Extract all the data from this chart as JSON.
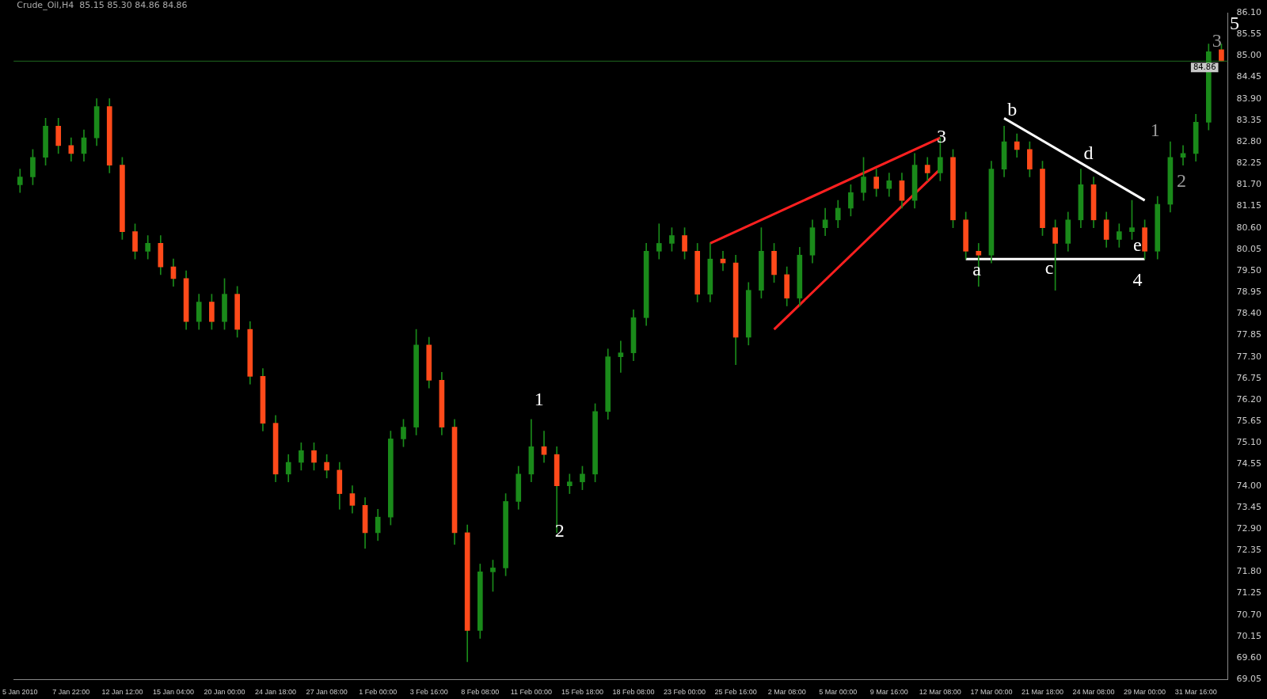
{
  "chart_data": {
    "type": "candlestick",
    "title": "Crude_Oil,H4  85.15 85.30 84.86 84.86",
    "categories": [
      "5 Jan 2010",
      null,
      null,
      null,
      "7 Jan 22:00",
      null,
      null,
      null,
      "12 Jan 12:00",
      null,
      null,
      null,
      "15 Jan 04:00",
      null,
      null,
      null,
      "20 Jan 00:00",
      null,
      null,
      null,
      "24 Jan 18:00",
      null,
      null,
      null,
      "27 Jan 08:00",
      null,
      null,
      null,
      "1 Feb 00:00",
      null,
      null,
      null,
      "3 Feb 16:00",
      null,
      null,
      null,
      "8 Feb 08:00",
      null,
      null,
      null,
      "11 Feb 00:00",
      null,
      null,
      null,
      "15 Feb 18:00",
      null,
      null,
      null,
      "18 Feb 08:00",
      null,
      null,
      null,
      "23 Feb 00:00",
      null,
      null,
      null,
      "25 Feb 16:00",
      null,
      null,
      null,
      "2 Mar 08:00",
      null,
      null,
      null,
      "5 Mar 00:00",
      null,
      null,
      null,
      "9 Mar 16:00",
      null,
      null,
      null,
      "12 Mar 08:00",
      null,
      null,
      null,
      "17 Mar 00:00",
      null,
      null,
      null,
      "21 Mar 18:00",
      null,
      null,
      null,
      "24 Mar 08:00",
      null,
      null,
      null,
      "29 Mar 00:00",
      null,
      null,
      null,
      "31 Mar 16:00",
      null,
      null
    ],
    "ohlc": [
      [
        81.7,
        82.1,
        81.5,
        81.9
      ],
      [
        81.9,
        82.6,
        81.7,
        82.4
      ],
      [
        82.4,
        83.4,
        82.2,
        83.2
      ],
      [
        83.2,
        83.4,
        82.5,
        82.7
      ],
      [
        82.7,
        82.9,
        82.3,
        82.5
      ],
      [
        82.5,
        83.1,
        82.3,
        82.9
      ],
      [
        82.9,
        83.9,
        82.7,
        83.7
      ],
      [
        83.7,
        83.9,
        82.0,
        82.2
      ],
      [
        82.2,
        82.4,
        80.3,
        80.5
      ],
      [
        80.5,
        80.7,
        79.8,
        80.0
      ],
      [
        80.0,
        80.4,
        79.8,
        80.2
      ],
      [
        80.2,
        80.4,
        79.4,
        79.6
      ],
      [
        79.6,
        79.8,
        79.1,
        79.3
      ],
      [
        79.3,
        79.5,
        78.0,
        78.2
      ],
      [
        78.2,
        78.9,
        78.0,
        78.7
      ],
      [
        78.7,
        78.9,
        78.0,
        78.2
      ],
      [
        78.2,
        79.3,
        78.0,
        78.9
      ],
      [
        78.9,
        79.1,
        77.8,
        78.0
      ],
      [
        78.0,
        78.2,
        76.6,
        76.8
      ],
      [
        76.8,
        77.0,
        75.4,
        75.6
      ],
      [
        75.6,
        75.8,
        74.1,
        74.3
      ],
      [
        74.3,
        74.8,
        74.1,
        74.6
      ],
      [
        74.6,
        75.1,
        74.4,
        74.9
      ],
      [
        74.9,
        75.1,
        74.4,
        74.6
      ],
      [
        74.6,
        74.8,
        74.2,
        74.4
      ],
      [
        74.4,
        74.6,
        73.4,
        73.8
      ],
      [
        73.8,
        74.0,
        73.3,
        73.5
      ],
      [
        73.5,
        73.7,
        72.4,
        72.8
      ],
      [
        72.8,
        73.4,
        72.6,
        73.2
      ],
      [
        73.2,
        75.4,
        73.0,
        75.2
      ],
      [
        75.2,
        75.7,
        75.0,
        75.5
      ],
      [
        75.5,
        78.0,
        75.3,
        77.6
      ],
      [
        77.6,
        77.8,
        76.5,
        76.7
      ],
      [
        76.7,
        76.9,
        75.3,
        75.5
      ],
      [
        75.5,
        75.7,
        72.5,
        72.8
      ],
      [
        72.8,
        73.0,
        69.5,
        70.3
      ],
      [
        70.3,
        72.0,
        70.1,
        71.8
      ],
      [
        71.8,
        72.1,
        71.3,
        71.9
      ],
      [
        71.9,
        73.8,
        71.7,
        73.6
      ],
      [
        73.6,
        74.5,
        73.4,
        74.3
      ],
      [
        74.3,
        75.7,
        74.1,
        75.0
      ],
      [
        75.0,
        75.4,
        74.6,
        74.8
      ],
      [
        74.8,
        75.0,
        72.8,
        74.0
      ],
      [
        74.0,
        74.3,
        73.8,
        74.1
      ],
      [
        74.1,
        74.5,
        73.9,
        74.3
      ],
      [
        74.3,
        76.1,
        74.1,
        75.9
      ],
      [
        75.9,
        77.5,
        75.7,
        77.3
      ],
      [
        77.3,
        77.7,
        76.9,
        77.4
      ],
      [
        77.4,
        78.5,
        77.2,
        78.3
      ],
      [
        78.3,
        80.2,
        78.1,
        80.0
      ],
      [
        80.0,
        80.7,
        79.8,
        80.2
      ],
      [
        80.2,
        80.6,
        80.0,
        80.4
      ],
      [
        80.4,
        80.6,
        79.8,
        80.0
      ],
      [
        80.0,
        80.2,
        78.7,
        78.9
      ],
      [
        78.9,
        80.2,
        78.7,
        79.8
      ],
      [
        79.8,
        80.0,
        79.5,
        79.7
      ],
      [
        79.7,
        79.9,
        77.1,
        77.8
      ],
      [
        77.8,
        79.2,
        77.6,
        79.0
      ],
      [
        79.0,
        80.6,
        78.8,
        80.0
      ],
      [
        80.0,
        80.2,
        79.2,
        79.4
      ],
      [
        79.4,
        79.6,
        78.6,
        78.8
      ],
      [
        78.8,
        80.1,
        78.6,
        79.9
      ],
      [
        79.9,
        80.8,
        79.7,
        80.6
      ],
      [
        80.6,
        81.1,
        80.4,
        80.8
      ],
      [
        80.8,
        81.3,
        80.6,
        81.1
      ],
      [
        81.1,
        81.7,
        80.9,
        81.5
      ],
      [
        81.5,
        82.4,
        81.3,
        81.9
      ],
      [
        81.9,
        82.1,
        81.4,
        81.6
      ],
      [
        81.6,
        82.0,
        81.4,
        81.8
      ],
      [
        81.8,
        82.0,
        81.1,
        81.3
      ],
      [
        81.3,
        82.5,
        81.1,
        82.2
      ],
      [
        82.2,
        82.4,
        81.8,
        82.0
      ],
      [
        82.0,
        82.9,
        81.8,
        82.4
      ],
      [
        82.4,
        82.6,
        80.6,
        80.8
      ],
      [
        80.8,
        81.0,
        79.8,
        80.0
      ],
      [
        80.0,
        80.2,
        79.1,
        79.9
      ],
      [
        79.9,
        82.3,
        79.7,
        82.1
      ],
      [
        82.1,
        83.2,
        81.9,
        82.8
      ],
      [
        82.8,
        83.0,
        82.4,
        82.6
      ],
      [
        82.6,
        82.8,
        81.9,
        82.1
      ],
      [
        82.1,
        82.3,
        80.4,
        80.6
      ],
      [
        80.6,
        80.8,
        79.0,
        80.2
      ],
      [
        80.2,
        81.0,
        80.0,
        80.8
      ],
      [
        80.8,
        82.1,
        80.6,
        81.7
      ],
      [
        81.7,
        81.9,
        80.6,
        80.8
      ],
      [
        80.8,
        81.0,
        80.1,
        80.3
      ],
      [
        80.3,
        80.7,
        80.1,
        80.5
      ],
      [
        80.5,
        81.3,
        80.3,
        80.6
      ],
      [
        80.6,
        80.8,
        79.8,
        80.0
      ],
      [
        80.0,
        81.4,
        79.8,
        81.2
      ],
      [
        81.2,
        82.8,
        81.0,
        82.4
      ],
      [
        82.4,
        82.7,
        82.2,
        82.5
      ],
      [
        82.5,
        83.5,
        82.3,
        83.3
      ],
      [
        83.3,
        85.3,
        83.1,
        85.1
      ],
      [
        85.15,
        85.3,
        84.86,
        84.86
      ]
    ],
    "series": [
      {
        "type": "line",
        "color": "#ff2020",
        "values": [
          null,
          null,
          null,
          null,
          null,
          null,
          null,
          null,
          null,
          null,
          null,
          null,
          null,
          null,
          null,
          null,
          null,
          null,
          null,
          null,
          null,
          null,
          null,
          null,
          null,
          null,
          null,
          null,
          null,
          null,
          null,
          null,
          null,
          null,
          null,
          null,
          null,
          null,
          null,
          null,
          null,
          null,
          null,
          null,
          null,
          null,
          null,
          null,
          null,
          null,
          null,
          null,
          null,
          null,
          80.2,
          null,
          null,
          null,
          null,
          null,
          null,
          null,
          null,
          null,
          null,
          null,
          null,
          null,
          null,
          null,
          null,
          null,
          82.9,
          null,
          null,
          null,
          null,
          null,
          null,
          null,
          null,
          null,
          null,
          null,
          null,
          null,
          null,
          null,
          null,
          null,
          null,
          null,
          null,
          null,
          null
        ]
      },
      {
        "type": "line",
        "color": "#ff2020",
        "values": [
          null,
          null,
          null,
          null,
          null,
          null,
          null,
          null,
          null,
          null,
          null,
          null,
          null,
          null,
          null,
          null,
          null,
          null,
          null,
          null,
          null,
          null,
          null,
          null,
          null,
          null,
          null,
          null,
          null,
          null,
          null,
          null,
          null,
          null,
          null,
          null,
          null,
          null,
          null,
          null,
          null,
          null,
          null,
          null,
          null,
          null,
          null,
          null,
          null,
          null,
          null,
          null,
          null,
          null,
          null,
          null,
          null,
          null,
          null,
          78.0,
          null,
          null,
          null,
          null,
          null,
          null,
          null,
          null,
          null,
          null,
          null,
          null,
          82.1,
          null,
          null,
          null,
          null,
          null,
          null,
          null,
          null,
          null,
          null,
          null,
          null,
          null,
          null,
          null,
          null,
          null,
          null,
          null,
          null,
          null,
          null
        ]
      },
      {
        "type": "line",
        "color": "#ffffff",
        "values": [
          null,
          null,
          null,
          null,
          null,
          null,
          null,
          null,
          null,
          null,
          null,
          null,
          null,
          null,
          null,
          null,
          null,
          null,
          null,
          null,
          null,
          null,
          null,
          null,
          null,
          null,
          null,
          null,
          null,
          null,
          null,
          null,
          null,
          null,
          null,
          null,
          null,
          null,
          null,
          null,
          null,
          null,
          null,
          null,
          null,
          null,
          null,
          null,
          null,
          null,
          null,
          null,
          null,
          null,
          null,
          null,
          null,
          null,
          null,
          null,
          null,
          null,
          null,
          null,
          null,
          null,
          null,
          null,
          null,
          null,
          null,
          null,
          null,
          null,
          null,
          null,
          null,
          83.4,
          null,
          null,
          null,
          null,
          null,
          null,
          null,
          null,
          null,
          null,
          81.3,
          null,
          null,
          null,
          null,
          null,
          null
        ]
      },
      {
        "type": "line",
        "color": "#ffffff",
        "values": [
          null,
          null,
          null,
          null,
          null,
          null,
          null,
          null,
          null,
          null,
          null,
          null,
          null,
          null,
          null,
          null,
          null,
          null,
          null,
          null,
          null,
          null,
          null,
          null,
          null,
          null,
          null,
          null,
          null,
          null,
          null,
          null,
          null,
          null,
          null,
          null,
          null,
          null,
          null,
          null,
          null,
          null,
          null,
          null,
          null,
          null,
          null,
          null,
          null,
          null,
          null,
          null,
          null,
          null,
          null,
          null,
          null,
          null,
          null,
          null,
          null,
          null,
          null,
          null,
          null,
          null,
          null,
          null,
          null,
          null,
          null,
          null,
          null,
          null,
          79.8,
          null,
          null,
          null,
          null,
          null,
          null,
          null,
          null,
          null,
          null,
          null,
          null,
          null,
          79.8,
          null,
          null,
          null,
          null,
          null,
          null
        ]
      }
    ],
    "ylim": [
      69.05,
      86.1
    ],
    "yticks": [
      69.05,
      {
        "value": 69.6,
        "label": "69.60"
      },
      70.15,
      {
        "value": 70.7,
        "label": "70.70"
      },
      71.25,
      {
        "value": 71.8,
        "label": "71.80"
      },
      72.35,
      {
        "value": 72.9,
        "label": "72.90"
      },
      73.45,
      {
        "value": 74,
        "label": "74.00"
      },
      74.55,
      {
        "value": 75.1,
        "label": "75.10"
      },
      75.65,
      {
        "value": 76.2,
        "label": "76.20"
      },
      76.75,
      {
        "value": 77.3,
        "label": "77.30"
      },
      77.85,
      {
        "value": 78.4,
        "label": "78.40"
      },
      78.95,
      {
        "value": 79.5,
        "label": "79.50"
      },
      80.05,
      {
        "value": 80.6,
        "label": "80.60"
      },
      81.15,
      {
        "value": 81.7,
        "label": "81.70"
      },
      82.25,
      {
        "value": 82.8,
        "label": "82.80"
      },
      83.35,
      {
        "value": 83.9,
        "label": "83.90"
      },
      84.45,
      {
        "value": 85,
        "label": "85.00"
      },
      85.55,
      {
        "value": 86.1,
        "label": "86.10"
      }
    ],
    "ref_lines": [
      {
        "axis": "y",
        "value": 84.86,
        "label": "84.86",
        "color": "#1f6b1f"
      }
    ],
    "annotations": [
      "1",
      "2",
      "3",
      "b",
      "d",
      "a",
      "c",
      "e",
      "4",
      "5",
      "1",
      "2",
      "3"
    ],
    "grid": false,
    "legend": false
  }
}
